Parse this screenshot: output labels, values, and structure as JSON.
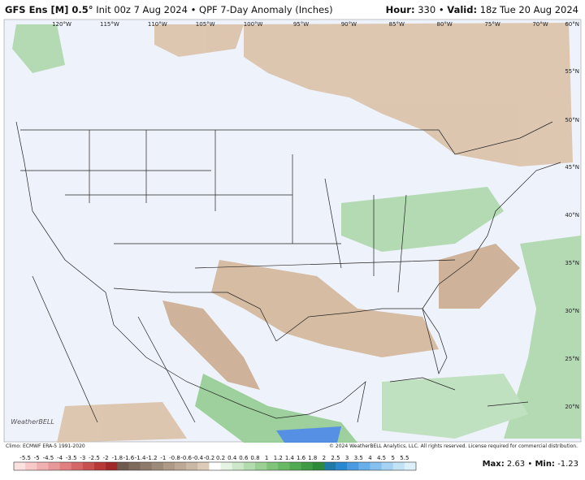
{
  "header": {
    "model": "GFS Ens [M] 0.5°",
    "init": "Init 00z 7 Aug 2024",
    "product": "QPF 7-Day Anomaly (Inches)",
    "hour_label": "Hour:",
    "hour": "330",
    "valid_label": "Valid:",
    "valid": "18z Tue 20 Aug 2024"
  },
  "map": {
    "lon_labels": [
      "120°W",
      "115°W",
      "110°W",
      "105°W",
      "100°W",
      "95°W",
      "90°W",
      "85°W",
      "80°W",
      "75°W",
      "70°W"
    ],
    "lat_labels": [
      "60°N",
      "55°N",
      "50°N",
      "45°N",
      "40°N",
      "35°N",
      "30°N",
      "25°N",
      "20°N"
    ],
    "logo": "WeatherBELL"
  },
  "footer": {
    "climo": "Climo: ECMWF ERA-5 1991-2020",
    "copyright": "© 2024 WeatherBELL Analytics, LLC. All rights reserved. License required for commercial distribution.",
    "max_label": "Max:",
    "max": "2.63",
    "min_label": "Min:",
    "min": "-1.23"
  },
  "colorbar": {
    "labels": [
      "-5.5",
      "-5",
      "-4.5",
      "-4",
      "-3.5",
      "-3",
      "-2.5",
      "-2",
      "-1.8",
      "-1.6",
      "-1.4",
      "-1.2",
      "-1",
      "-0.8",
      "-0.6",
      "-0.4",
      "-0.2",
      "0.2",
      "0.4",
      "0.6",
      "0.8",
      "1",
      "1.2",
      "1.4",
      "1.6",
      "1.8",
      "2",
      "2.5",
      "3",
      "3.5",
      "4",
      "4.5",
      "5",
      "5.5"
    ]
  }
}
